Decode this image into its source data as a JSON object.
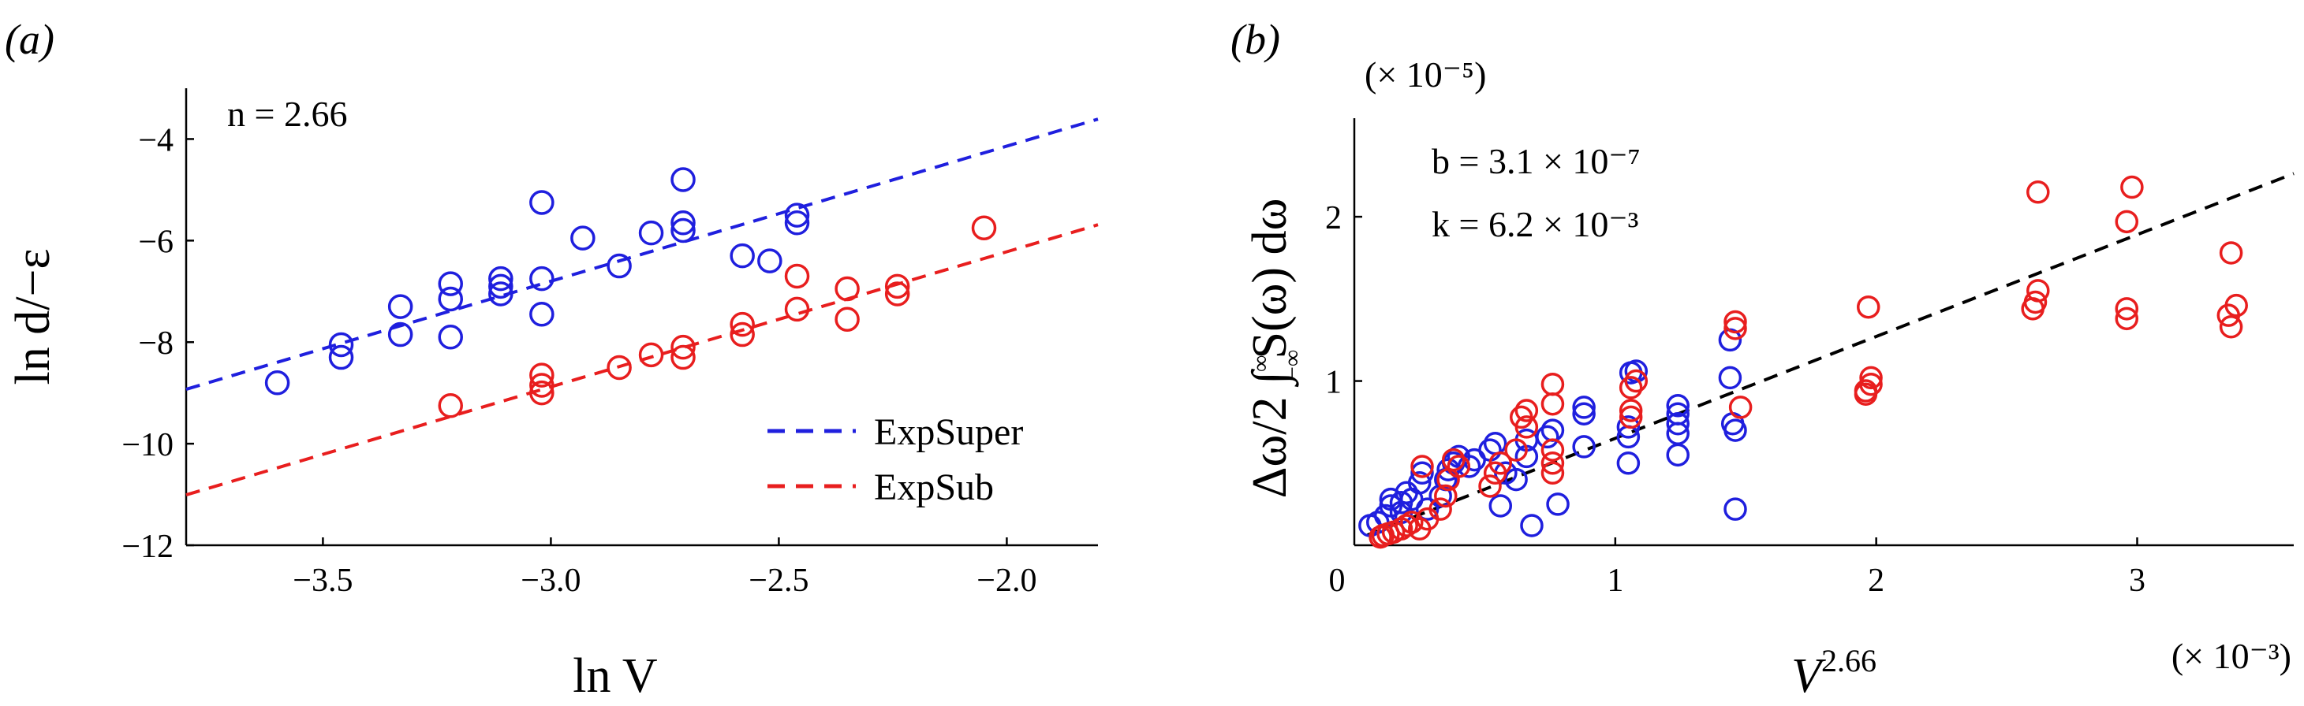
{
  "chart_data": [
    {
      "type": "scatter",
      "panel_label": "(a)",
      "xlabel": "ln V",
      "ylabel": "ln d/−ε",
      "xlim": [
        -3.8,
        -1.8
      ],
      "ylim": [
        -12,
        -3
      ],
      "xticks": [
        -3.5,
        -3.0,
        -2.5,
        -2.0
      ],
      "xtick_labels": [
        "−3.5",
        "−3.0",
        "−2.5",
        "−2.0"
      ],
      "yticks": [
        -12,
        -10,
        -8,
        -6,
        -4
      ],
      "ytick_labels": [
        "−12",
        "−10",
        "−8",
        "−6",
        "−4"
      ],
      "annotation": "n = 2.66",
      "legend": [
        "ExpSuper",
        "ExpSub"
      ],
      "legend_position": "bottom-right",
      "series": [
        {
          "name": "ExpSuper",
          "color": "#1f1fde",
          "fit": {
            "slope": 2.66,
            "intercept": 1.18
          },
          "points": [
            [
              -3.6,
              -8.8
            ],
            [
              -3.46,
              -8.3
            ],
            [
              -3.46,
              -8.05
            ],
            [
              -3.33,
              -7.85
            ],
            [
              -3.33,
              -7.3
            ],
            [
              -3.22,
              -7.9
            ],
            [
              -3.22,
              -7.15
            ],
            [
              -3.22,
              -6.85
            ],
            [
              -3.11,
              -7.05
            ],
            [
              -3.11,
              -6.9
            ],
            [
              -3.11,
              -6.75
            ],
            [
              -3.02,
              -7.45
            ],
            [
              -3.02,
              -6.75
            ],
            [
              -3.02,
              -5.25
            ],
            [
              -2.93,
              -5.95
            ],
            [
              -2.85,
              -6.5
            ],
            [
              -2.78,
              -5.85
            ],
            [
              -2.71,
              -5.8
            ],
            [
              -2.71,
              -5.65
            ],
            [
              -2.71,
              -4.8
            ],
            [
              -2.58,
              -6.3
            ],
            [
              -2.52,
              -6.4
            ],
            [
              -2.46,
              -5.65
            ],
            [
              -2.46,
              -5.5
            ]
          ]
        },
        {
          "name": "ExpSub",
          "color": "#e81e1e",
          "fit": {
            "slope": 2.66,
            "intercept": -0.9
          },
          "points": [
            [
              -3.22,
              -9.25
            ],
            [
              -3.02,
              -9.0
            ],
            [
              -3.02,
              -8.85
            ],
            [
              -3.02,
              -8.65
            ],
            [
              -2.85,
              -8.5
            ],
            [
              -2.78,
              -8.25
            ],
            [
              -2.71,
              -8.3
            ],
            [
              -2.71,
              -8.1
            ],
            [
              -2.58,
              -7.85
            ],
            [
              -2.58,
              -7.65
            ],
            [
              -2.46,
              -7.35
            ],
            [
              -2.46,
              -6.7
            ],
            [
              -2.35,
              -7.55
            ],
            [
              -2.35,
              -6.95
            ],
            [
              -2.24,
              -7.05
            ],
            [
              -2.24,
              -6.9
            ],
            [
              -2.05,
              -5.75
            ]
          ]
        }
      ]
    },
    {
      "type": "scatter",
      "panel_label": "(b)",
      "xlabel": "V",
      "xlabel_exponent": "2.66",
      "ylabel": "Δω/2 ∫ S(ω) dω",
      "ylabel_limits": [
        "∞",
        "−∞"
      ],
      "xlim": [
        0,
        3.6
      ],
      "ylim": [
        0,
        2.6
      ],
      "xticks": [
        0,
        1,
        2,
        3
      ],
      "xtick_labels": [
        "0",
        "1",
        "2",
        "3"
      ],
      "yticks": [
        1,
        2
      ],
      "ytick_labels": [
        "1",
        "2"
      ],
      "x_scale_note": "(× 10⁻³)",
      "y_scale_note": "(× 10⁻⁵)",
      "annotations": [
        "b = 3.1 × 10⁻⁷",
        "k = 6.2 × 10⁻³"
      ],
      "fit": {
        "intercept": 0.031,
        "slope": 0.62,
        "color": "#000000"
      },
      "series": [
        {
          "name": "ExpSuper",
          "color": "#1f1fde",
          "points": [
            [
              0.06,
              0.12
            ],
            [
              0.09,
              0.14
            ],
            [
              0.12,
              0.18
            ],
            [
              0.14,
              0.24
            ],
            [
              0.14,
              0.28
            ],
            [
              0.18,
              0.2
            ],
            [
              0.18,
              0.26
            ],
            [
              0.2,
              0.32
            ],
            [
              0.22,
              0.28
            ],
            [
              0.25,
              0.38
            ],
            [
              0.26,
              0.44
            ],
            [
              0.28,
              0.22
            ],
            [
              0.33,
              0.3
            ],
            [
              0.35,
              0.4
            ],
            [
              0.36,
              0.46
            ],
            [
              0.38,
              0.5
            ],
            [
              0.4,
              0.54
            ],
            [
              0.44,
              0.48
            ],
            [
              0.46,
              0.52
            ],
            [
              0.52,
              0.58
            ],
            [
              0.54,
              0.62
            ],
            [
              0.56,
              0.24
            ],
            [
              0.58,
              0.44
            ],
            [
              0.62,
              0.4
            ],
            [
              0.66,
              0.54
            ],
            [
              0.66,
              0.64
            ],
            [
              0.68,
              0.12
            ],
            [
              0.74,
              0.66
            ],
            [
              0.76,
              0.7
            ],
            [
              0.78,
              0.25
            ],
            [
              0.88,
              0.6
            ],
            [
              0.88,
              0.8
            ],
            [
              0.88,
              0.84
            ],
            [
              1.05,
              0.5
            ],
            [
              1.05,
              0.66
            ],
            [
              1.05,
              0.72
            ],
            [
              1.06,
              1.05
            ],
            [
              1.08,
              1.06
            ],
            [
              1.24,
              0.55
            ],
            [
              1.24,
              0.68
            ],
            [
              1.24,
              0.74
            ],
            [
              1.24,
              0.8
            ],
            [
              1.24,
              0.85
            ],
            [
              1.44,
              1.02
            ],
            [
              1.44,
              1.25
            ],
            [
              1.45,
              0.74
            ],
            [
              1.46,
              0.7
            ],
            [
              1.46,
              0.22
            ]
          ]
        },
        {
          "name": "ExpSub",
          "color": "#e81e1e",
          "points": [
            [
              0.1,
              0.05
            ],
            [
              0.11,
              0.06
            ],
            [
              0.13,
              0.07
            ],
            [
              0.15,
              0.08
            ],
            [
              0.18,
              0.1
            ],
            [
              0.2,
              0.12
            ],
            [
              0.22,
              0.14
            ],
            [
              0.25,
              0.1
            ],
            [
              0.26,
              0.48
            ],
            [
              0.28,
              0.16
            ],
            [
              0.33,
              0.22
            ],
            [
              0.35,
              0.3
            ],
            [
              0.36,
              0.4
            ],
            [
              0.38,
              0.52
            ],
            [
              0.4,
              0.48
            ],
            [
              0.52,
              0.36
            ],
            [
              0.54,
              0.44
            ],
            [
              0.56,
              0.5
            ],
            [
              0.62,
              0.58
            ],
            [
              0.64,
              0.78
            ],
            [
              0.66,
              0.82
            ],
            [
              0.66,
              0.72
            ],
            [
              0.76,
              0.44
            ],
            [
              0.76,
              0.5
            ],
            [
              0.76,
              0.58
            ],
            [
              0.76,
              0.86
            ],
            [
              0.76,
              0.98
            ],
            [
              1.06,
              0.78
            ],
            [
              1.06,
              0.82
            ],
            [
              1.06,
              0.96
            ],
            [
              1.08,
              1.0
            ],
            [
              1.46,
              1.36
            ],
            [
              1.46,
              1.32
            ],
            [
              1.48,
              0.84
            ],
            [
              1.96,
              0.92
            ],
            [
              1.96,
              0.94
            ],
            [
              1.97,
              1.45
            ],
            [
              1.98,
              0.98
            ],
            [
              1.98,
              1.02
            ],
            [
              2.6,
              1.44
            ],
            [
              2.61,
              1.48
            ],
            [
              2.62,
              1.55
            ],
            [
              2.62,
              2.15
            ],
            [
              2.96,
              1.38
            ],
            [
              2.96,
              1.44
            ],
            [
              2.96,
              1.97
            ],
            [
              2.98,
              2.18
            ],
            [
              3.35,
              1.4
            ],
            [
              3.36,
              1.33
            ],
            [
              3.36,
              1.78
            ],
            [
              3.38,
              1.46
            ]
          ]
        }
      ]
    }
  ]
}
